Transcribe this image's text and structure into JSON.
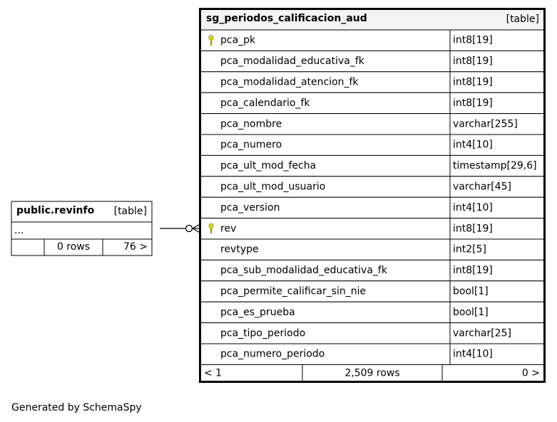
{
  "tables": [
    {
      "name": "public.revinfo",
      "kind": "[table]",
      "rows": [
        {
          "name": "..."
        }
      ],
      "footer": [
        "0 rows",
        "76 >"
      ]
    },
    {
      "name": "sg_periodos_calificacion_aud",
      "kind": "[table]",
      "rows": [
        {
          "name": "pca_pk",
          "type": "int8[19]",
          "key": true
        },
        {
          "name": "pca_modalidad_educativa_fk",
          "type": "int8[19]"
        },
        {
          "name": "pca_modalidad_atencion_fk",
          "type": "int8[19]"
        },
        {
          "name": "pca_calendario_fk",
          "type": "int8[19]"
        },
        {
          "name": "pca_nombre",
          "type": "varchar[255]"
        },
        {
          "name": "pca_numero",
          "type": "int4[10]"
        },
        {
          "name": "pca_ult_mod_fecha",
          "type": "timestamp[29,6]"
        },
        {
          "name": "pca_ult_mod_usuario",
          "type": "varchar[45]"
        },
        {
          "name": "pca_version",
          "type": "int4[10]"
        },
        {
          "name": "rev",
          "type": "int8[19]",
          "key": true
        },
        {
          "name": "revtype",
          "type": "int2[5]"
        },
        {
          "name": "pca_sub_modalidad_educativa_fk",
          "type": "int8[19]"
        },
        {
          "name": "pca_permite_calificar_sin_nie",
          "type": "bool[1]"
        },
        {
          "name": "pca_es_prueba",
          "type": "bool[1]"
        },
        {
          "name": "pca_tipo_periodo",
          "type": "varchar[25]"
        },
        {
          "name": "pca_numero_periodo",
          "type": "int4[10]"
        }
      ],
      "footer": [
        "< 1",
        "2,509 rows",
        "0 >"
      ]
    }
  ],
  "credit": "Generated by SchemaSpy"
}
